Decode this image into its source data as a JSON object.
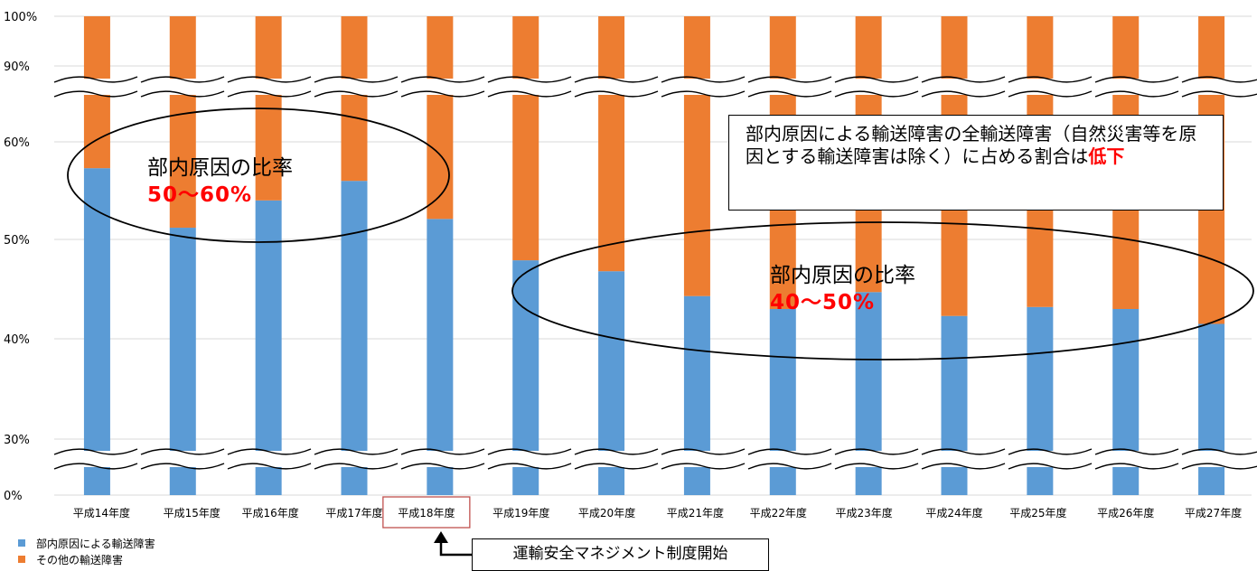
{
  "chart_data": {
    "type": "bar",
    "stacked": true,
    "normalized": true,
    "categories": [
      "平成14年度",
      "平成15年度",
      "平成16年度",
      "平成17年度",
      "平成18年度",
      "平成19年度",
      "平成20年度",
      "平成21年度",
      "平成22年度",
      "平成23年度",
      "平成24年度",
      "平成25年度",
      "平成26年度",
      "平成27年度"
    ],
    "series": [
      {
        "name": "部内原因による輸送障害",
        "color": "#5b9bd5",
        "values": [
          57.3,
          51.2,
          54.0,
          56.0,
          52.1,
          47.9,
          46.8,
          44.3,
          43.0,
          44.7,
          42.3,
          43.2,
          43.0,
          41.5
        ]
      },
      {
        "name": "その他の輸送障害",
        "color": "#ed7d31",
        "values": [
          42.7,
          48.8,
          46.0,
          44.0,
          47.9,
          52.1,
          53.2,
          55.7,
          57.0,
          55.3,
          57.7,
          56.8,
          57.0,
          58.5
        ]
      }
    ],
    "y_ticks": [
      "100%",
      "90%",
      "60%",
      "50%",
      "40%",
      "30%",
      "0%"
    ],
    "y_axis_broken": true,
    "highlighted_category": "平成18年度",
    "grid": true,
    "legend_position": "bottom-left"
  },
  "annotations": {
    "ellipse_left": {
      "label": "部内原因の比率",
      "value": "50～60%"
    },
    "ellipse_right": {
      "label": "部内原因の比率",
      "value": "40～50%"
    },
    "note_box": {
      "text": "部内原因による輸送障害の全輸送障害（自然災害等を原因とする輸送障害は除く）に占める割合は",
      "highlight": "低下"
    },
    "milestone": "運輸安全マネジメント制度開始"
  }
}
